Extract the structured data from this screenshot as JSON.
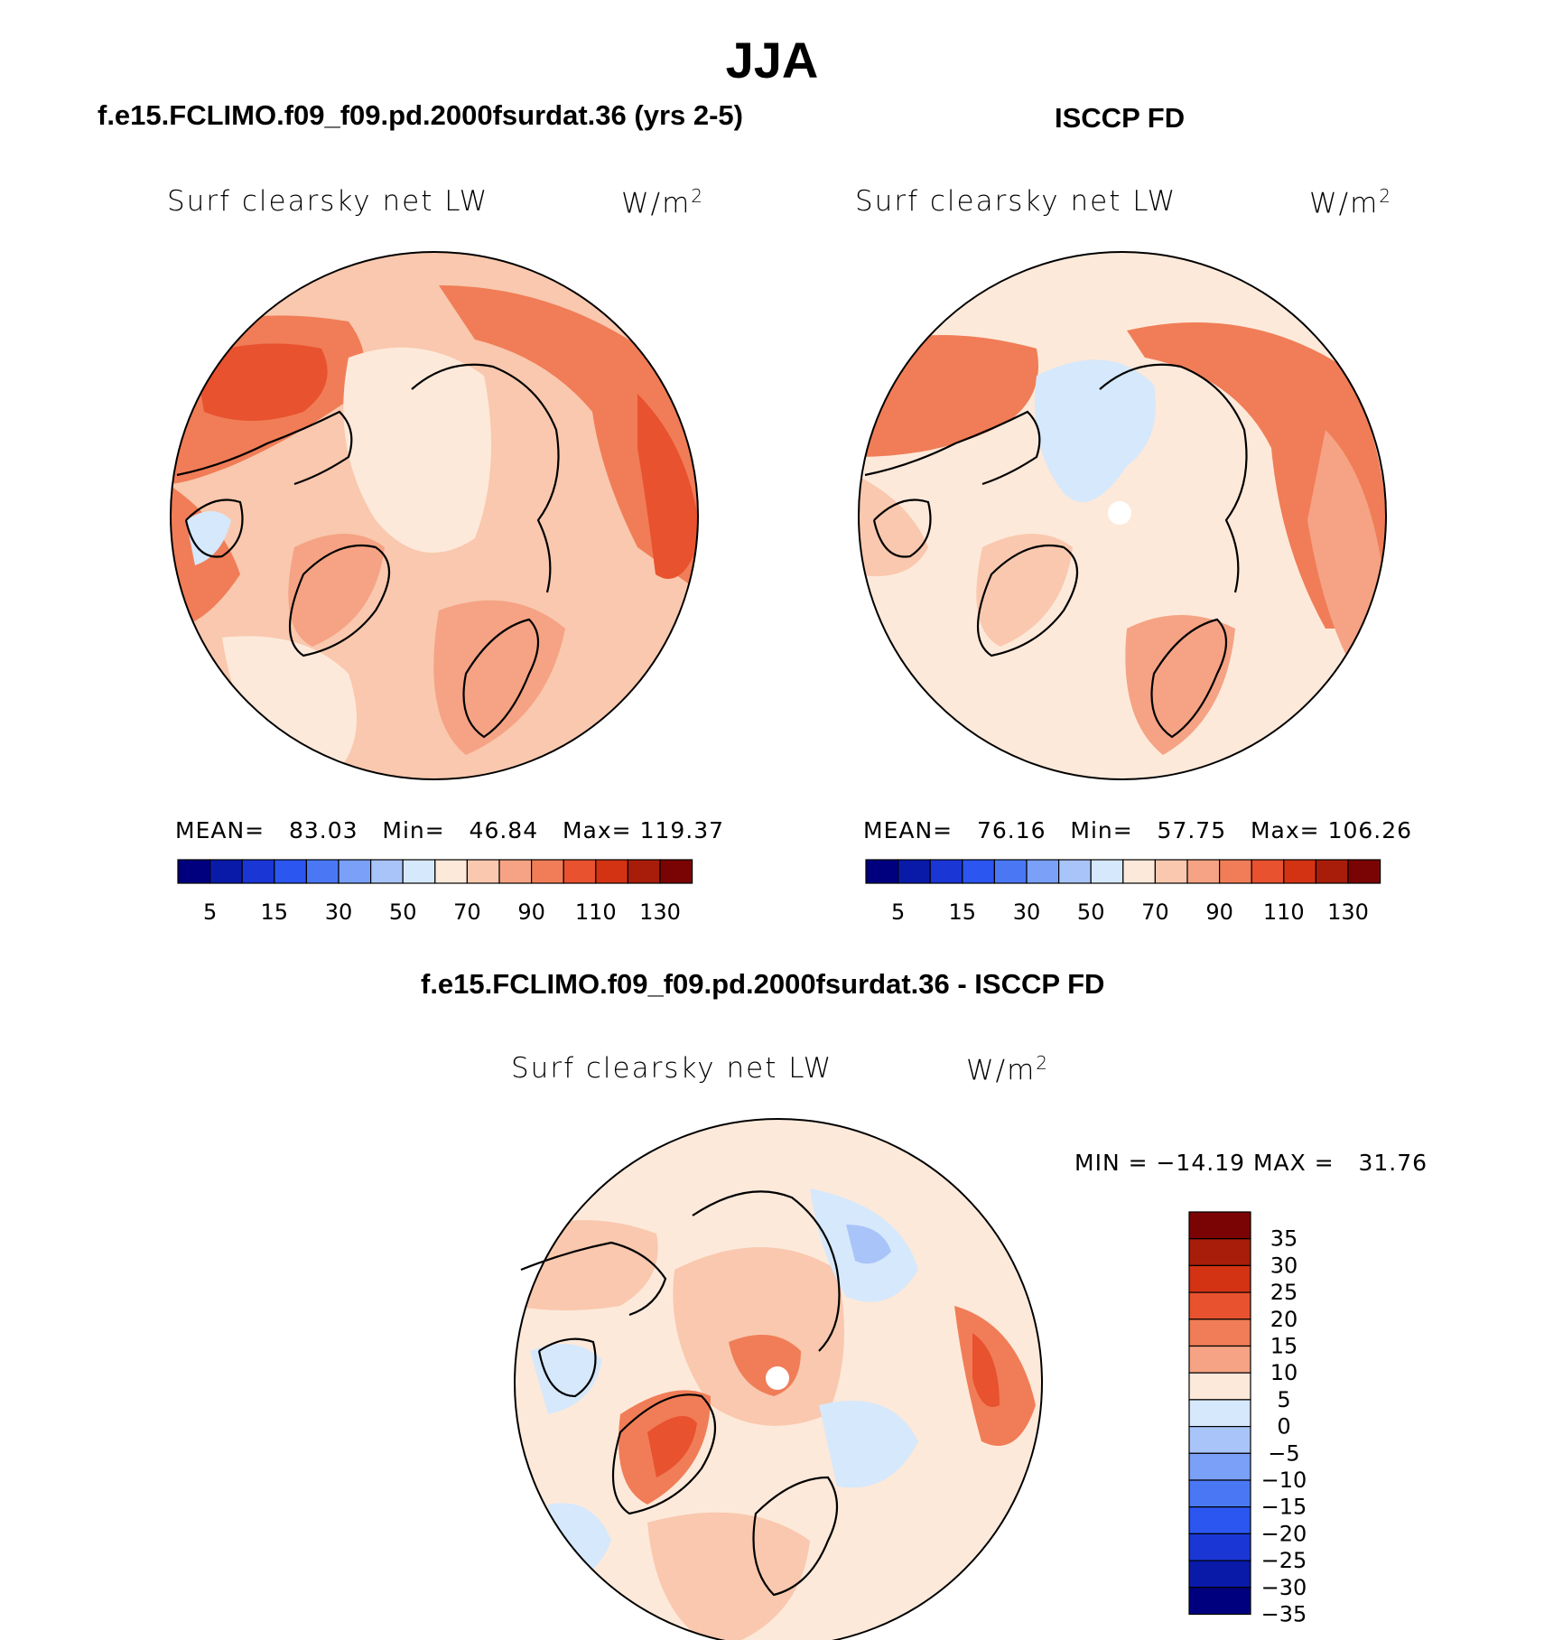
{
  "title": "JJA",
  "panels": [
    {
      "id": "model",
      "case_title": "f.e15.FCLIMO.f09_f09.pd.2000fsurdat.36 (yrs 2-5)",
      "variable_label": "Surf clearsky net LW",
      "units_label": "W/m",
      "units_exp": "2",
      "stats": {
        "mean_label": "MEAN=",
        "mean": "83.03",
        "min_label": "Min=",
        "min": "46.84",
        "max_label": "Max=",
        "max": "119.37"
      }
    },
    {
      "id": "obs",
      "case_title": "ISCCP FD",
      "variable_label": "Surf clearsky net LW",
      "units_label": "W/m",
      "units_exp": "2",
      "stats": {
        "mean_label": "MEAN=",
        "mean": "76.16",
        "min_label": "Min=",
        "min": "57.75",
        "max_label": "Max=",
        "max": "106.26"
      }
    },
    {
      "id": "diff",
      "case_title": "f.e15.FCLIMO.f09_f09.pd.2000fsurdat.36 - ISCCP FD",
      "variable_label": "Surf clearsky net LW",
      "units_label": "W/m",
      "units_exp": "2",
      "stats_text": "MIN = −14.19 MAX =   31.76"
    }
  ],
  "colorbar_abs": {
    "colors": [
      "#00007f",
      "#0a1aa8",
      "#1a37d6",
      "#2b56f0",
      "#4a78f5",
      "#7aa0f7",
      "#a9c4f8",
      "#d6e8fb",
      "#fde9da",
      "#f9c8ae",
      "#f5a384",
      "#f07d57",
      "#e8522e",
      "#d33313",
      "#a81d0a",
      "#7a0403"
    ],
    "tick_labels": [
      "5",
      "15",
      "30",
      "50",
      "70",
      "90",
      "110",
      "130"
    ]
  },
  "colorbar_diff": {
    "colors": [
      "#7a0403",
      "#a81d0a",
      "#d33313",
      "#e8522e",
      "#f07d57",
      "#f5a384",
      "#fde9da",
      "#d6e8fb",
      "#a9c4f8",
      "#7aa0f7",
      "#4a78f5",
      "#2b56f0",
      "#1a37d6",
      "#0a1aa8",
      "#00007f"
    ],
    "tick_labels": [
      "35",
      "30",
      "25",
      "20",
      "15",
      "10",
      "5",
      "0",
      "−5",
      "−10",
      "−15",
      "−20",
      "−25",
      "−30",
      "−35"
    ]
  },
  "map_colors": {
    "base_model": "#f9c8ae",
    "warm_model": "#f07d57",
    "hot_model": "#e8522e",
    "base_obs": "#fde9da",
    "warm_obs": "#f5a384",
    "cool_obs": "#d6e8fb",
    "base_diff": "#f9c8ae",
    "cool_diff": "#d6e8fb",
    "blue_diff": "#a9c4f8",
    "coast": "#000000",
    "pole": "#ffffff"
  }
}
